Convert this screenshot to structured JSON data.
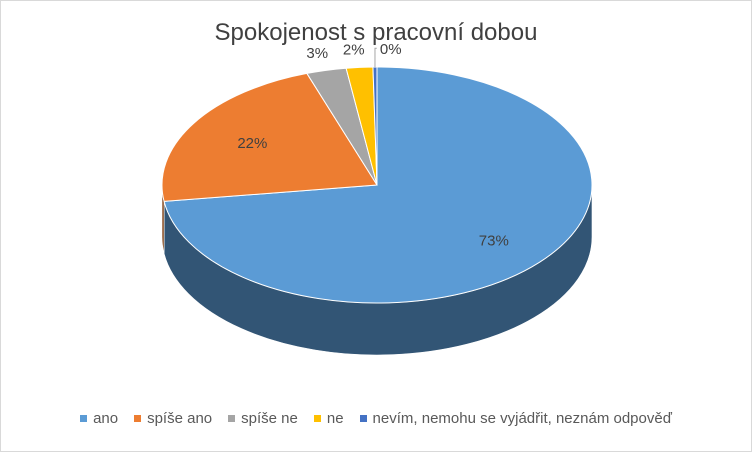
{
  "chart_data": {
    "type": "pie",
    "title": "Spokojenost s pracovní dobou",
    "categories": [
      "ano",
      "spíše ano",
      "spíše ne",
      "ne",
      "nevím, nemohu se vyjádřit, neznám odpověď"
    ],
    "values": [
      73,
      22,
      3,
      2,
      0
    ],
    "labels": [
      "73%",
      "22%",
      "3%",
      "2%",
      "0%"
    ],
    "colors": [
      "#5b9bd5",
      "#ed7d31",
      "#a5a5a5",
      "#ffc000",
      "#4472c4"
    ],
    "legend_position": "bottom",
    "style": "3d"
  }
}
